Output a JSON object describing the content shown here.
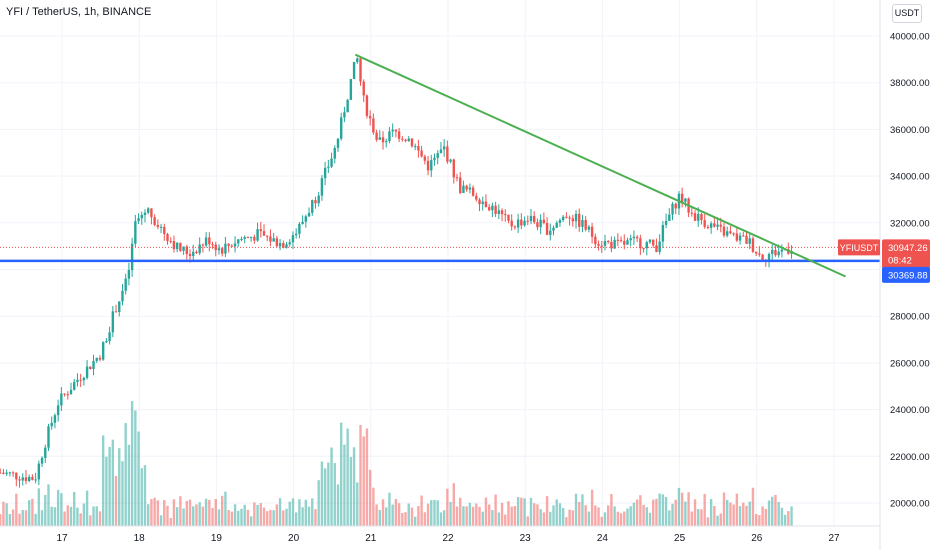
{
  "title": "YFI / TetherUS, 1h, BINANCE",
  "currency_button": "USDT",
  "colors": {
    "up": "#26a69a",
    "down": "#ef5350",
    "trendline": "#4caf50",
    "support": "#2962ff",
    "price_line": "#ef5350",
    "grid": "#f0f3fa"
  },
  "chart_data": {
    "type": "candlestick",
    "ylim": [
      19000,
      40400
    ],
    "x_tick_labels": [
      "17",
      "18",
      "19",
      "20",
      "21",
      "22",
      "23",
      "24",
      "25",
      "26",
      "27"
    ],
    "y_tick_labels": [
      "40000.00",
      "38000.00",
      "36000.00",
      "34000.00",
      "32000.00",
      "30000.00",
      "28000.00",
      "26000.00",
      "24000.00",
      "22000.00",
      "20000.00"
    ],
    "current_price": {
      "symbol": "YFIUSDT",
      "value": "30947.26",
      "countdown": "08:42",
      "y": 30947.26
    },
    "support_label": {
      "value": "30369.88",
      "y": 30369.88
    },
    "trendline": {
      "start": {
        "day": 20.8,
        "price": 39200
      },
      "end": {
        "day": 27.15,
        "price": 29700
      }
    },
    "price_anchors": [
      [
        16.2,
        21300
      ],
      [
        16.65,
        21050
      ],
      [
        16.8,
        22800
      ],
      [
        16.95,
        24300
      ],
      [
        17.2,
        25300
      ],
      [
        17.5,
        26400
      ],
      [
        17.7,
        28400
      ],
      [
        17.85,
        29600
      ],
      [
        17.95,
        32000
      ],
      [
        18.1,
        32600
      ],
      [
        18.3,
        31700
      ],
      [
        18.5,
        30900
      ],
      [
        18.65,
        30700
      ],
      [
        18.9,
        31300
      ],
      [
        19.05,
        30850
      ],
      [
        19.3,
        31300
      ],
      [
        19.55,
        31500
      ],
      [
        19.85,
        31100
      ],
      [
        20.05,
        31650
      ],
      [
        20.3,
        33200
      ],
      [
        20.55,
        35300
      ],
      [
        20.75,
        38200
      ],
      [
        20.82,
        39100
      ],
      [
        20.9,
        37300
      ],
      [
        21.1,
        35400
      ],
      [
        21.3,
        35900
      ],
      [
        21.5,
        35600
      ],
      [
        21.75,
        34400
      ],
      [
        21.95,
        35200
      ],
      [
        22.15,
        33500
      ],
      [
        22.35,
        33200
      ],
      [
        22.6,
        32600
      ],
      [
        22.8,
        31900
      ],
      [
        23.05,
        32200
      ],
      [
        23.3,
        31700
      ],
      [
        23.55,
        32400
      ],
      [
        23.75,
        31900
      ],
      [
        23.95,
        31200
      ],
      [
        24.2,
        31050
      ],
      [
        24.45,
        31200
      ],
      [
        24.7,
        31000
      ],
      [
        24.82,
        32000
      ],
      [
        25.0,
        33200
      ],
      [
        25.15,
        32400
      ],
      [
        25.3,
        32100
      ],
      [
        25.5,
        31700
      ],
      [
        25.7,
        31400
      ],
      [
        25.9,
        31200
      ],
      [
        26.05,
        30550
      ],
      [
        26.25,
        30750
      ],
      [
        26.45,
        30947
      ]
    ],
    "volume_scale_max": 100
  }
}
